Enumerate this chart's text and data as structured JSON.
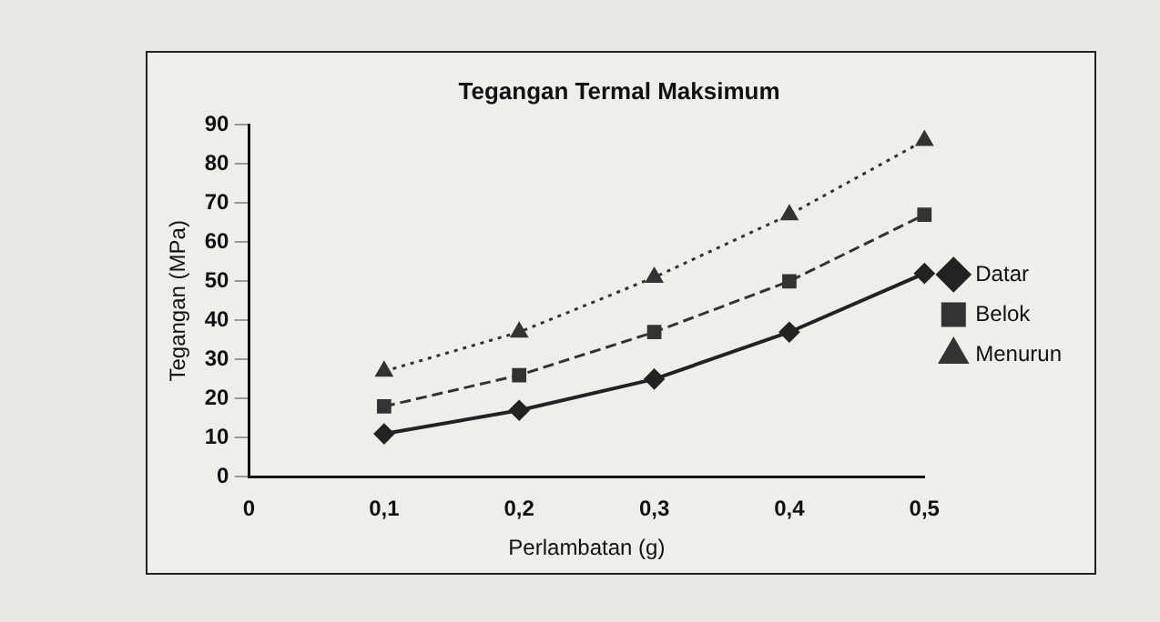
{
  "chart_data": {
    "type": "line",
    "title": "Tegangan Termal Maksimum",
    "xlabel": "Perlambatan (g)",
    "ylabel": "Tegangan (MPa)",
    "x": [
      0.1,
      0.2,
      0.3,
      0.4,
      0.5
    ],
    "xlim": [
      0,
      0.5
    ],
    "xticks": [
      {
        "value": 0,
        "label": "0"
      },
      {
        "value": 0.1,
        "label": "0,1"
      },
      {
        "value": 0.2,
        "label": "0,2"
      },
      {
        "value": 0.3,
        "label": "0,3"
      },
      {
        "value": 0.4,
        "label": "0,4"
      },
      {
        "value": 0.5,
        "label": "0,5"
      }
    ],
    "ylim": [
      0,
      90
    ],
    "yticks": [
      0,
      10,
      20,
      30,
      40,
      50,
      60,
      70,
      80,
      90
    ],
    "grid": false,
    "legend": "right",
    "series": [
      {
        "name": "Datar",
        "color": "#222222",
        "values": [
          11,
          17,
          25,
          37,
          52
        ],
        "marker": "diamond",
        "line_style": "solid"
      },
      {
        "name": "Belok",
        "color": "#333333",
        "values": [
          18,
          26,
          37,
          50,
          67
        ],
        "marker": "square",
        "line_style": "dashed"
      },
      {
        "name": "Menurun",
        "color": "#333333",
        "values": [
          27,
          37,
          51,
          67,
          86
        ],
        "marker": "triangle",
        "line_style": "dotted"
      }
    ]
  }
}
